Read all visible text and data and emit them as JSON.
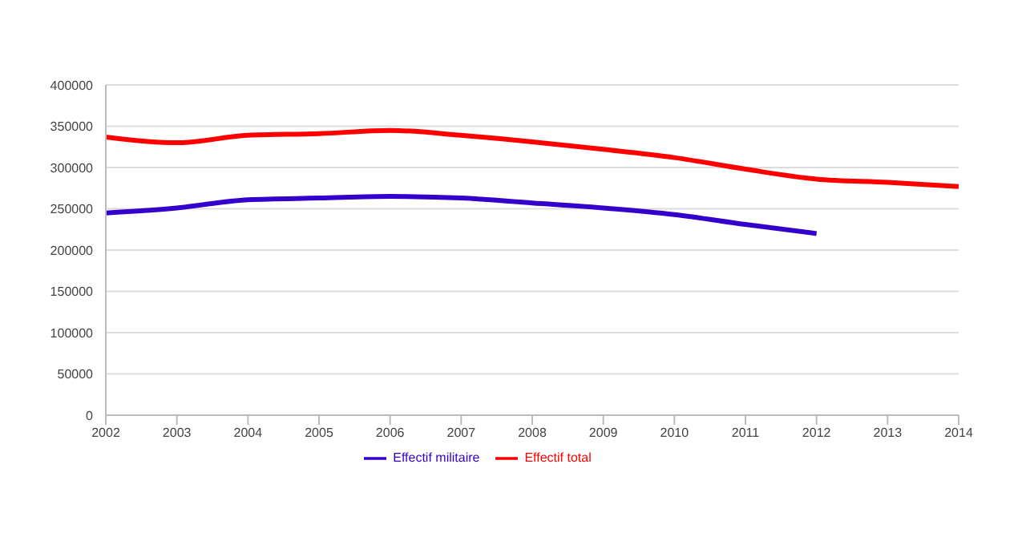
{
  "chart_data": {
    "type": "line",
    "x": [
      2002,
      2003,
      2004,
      2005,
      2006,
      2007,
      2008,
      2009,
      2010,
      2011,
      2012,
      2013,
      2014
    ],
    "series": [
      {
        "name": "Effectif total",
        "color": "#ff0000",
        "values": [
          337000,
          330000,
          339000,
          341000,
          345000,
          339000,
          331000,
          322000,
          312000,
          298000,
          286000,
          282000,
          277000
        ]
      },
      {
        "name": "Effectif militaire",
        "color": "#3300cc",
        "values": [
          245000,
          251000,
          261000,
          263000,
          265000,
          263000,
          257000,
          251000,
          243000,
          231000,
          220000,
          null,
          null
        ]
      }
    ],
    "xlim": [
      2002,
      2014
    ],
    "xticks": [
      2002,
      2003,
      2004,
      2005,
      2006,
      2007,
      2008,
      2009,
      2010,
      2011,
      2012,
      2013,
      2014
    ],
    "ylim": [
      0,
      400000
    ],
    "yticks": [
      0,
      50000,
      100000,
      150000,
      200000,
      250000,
      300000,
      350000,
      400000
    ],
    "grid": "y",
    "legend": "bottom",
    "marker": "none",
    "line_style": "solid"
  }
}
